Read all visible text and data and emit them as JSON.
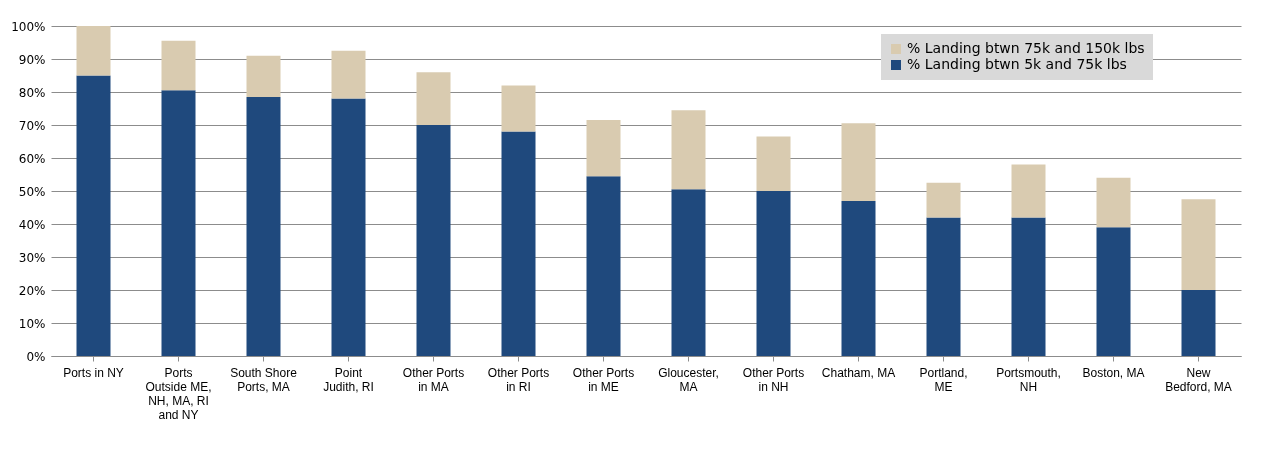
{
  "chart_data": {
    "type": "bar",
    "stacked": true,
    "categories": [
      "Ports in NY",
      "Ports Outside ME, NH, MA, RI and NY",
      "South Shore Ports, MA",
      "Point Judith, RI",
      "Other Ports in MA",
      "Other Ports in RI",
      "Other Ports in ME",
      "Gloucester, MA",
      "Other Ports in NH",
      "Chatham, MA",
      "Portland, ME",
      "Portsmouth, NH",
      "Boston, MA",
      "New Bedford, MA"
    ],
    "series": [
      {
        "name": "% Landing btwn 5k and 75k lbs",
        "color": "#1f497d",
        "values": [
          85,
          80.5,
          78.5,
          78,
          70,
          68,
          54.5,
          50.5,
          50,
          47,
          42,
          42,
          39,
          20
        ]
      },
      {
        "name": "% Landing btwn 75k and 150k lbs",
        "color": "#d9cbb0",
        "values": [
          15,
          15,
          12.5,
          14.5,
          16,
          14,
          17,
          24,
          16.5,
          23.5,
          10.5,
          16,
          15,
          27.5
        ]
      }
    ],
    "ylim": [
      0,
      100
    ],
    "yticks": [
      {
        "value": 0,
        "label": "0%"
      },
      {
        "value": 10,
        "label": "10%"
      },
      {
        "value": 20,
        "label": "20%"
      },
      {
        "value": 30,
        "label": "30%"
      },
      {
        "value": 40,
        "label": "40%"
      },
      {
        "value": 50,
        "label": "50%"
      },
      {
        "value": 60,
        "label": "60%"
      },
      {
        "value": 70,
        "label": "70%"
      },
      {
        "value": 80,
        "label": "80%"
      },
      {
        "value": 90,
        "label": "90%"
      },
      {
        "value": 100,
        "label": "100%"
      }
    ],
    "grid": "y",
    "legend": "top right"
  }
}
